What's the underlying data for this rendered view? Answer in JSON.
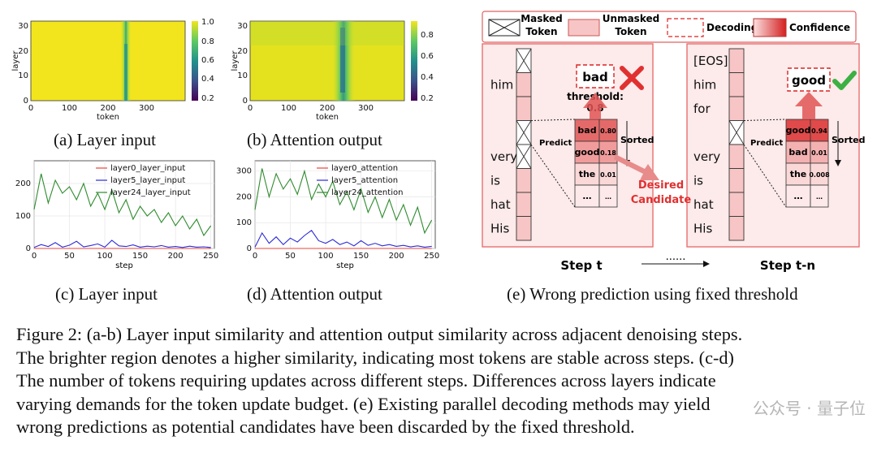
{
  "panels": {
    "a": {
      "caption": "(a) Layer input"
    },
    "b": {
      "caption": "(b) Attention output"
    },
    "c": {
      "caption": "(c) Layer input"
    },
    "d": {
      "caption": "(d) Attention output"
    },
    "e": {
      "caption": "(e) Wrong prediction using fixed threshold"
    }
  },
  "chart_data": [
    {
      "id": "a",
      "type": "heatmap",
      "title": "",
      "xlabel": "token",
      "ylabel": "layer",
      "xlim": [
        0,
        400
      ],
      "ylim": [
        0,
        32
      ],
      "x_ticks": [
        "0",
        "100",
        "200",
        "300"
      ],
      "y_ticks": [
        "0",
        "10",
        "20",
        "30"
      ],
      "colorbar_ticks": [
        "0.2",
        "0.4",
        "0.6",
        "0.8",
        "1.0"
      ],
      "colorbar_range": [
        0.15,
        1.0
      ],
      "colors": {
        "low": "#440154",
        "mid": "#21918c",
        "high": "#f2e51d"
      },
      "low_similarity_band": {
        "token_center": 252,
        "value_min": 0.6
      }
    },
    {
      "id": "b",
      "type": "heatmap",
      "title": "",
      "xlabel": "token",
      "ylabel": "layer",
      "xlim": [
        0,
        400
      ],
      "ylim": [
        0,
        32
      ],
      "x_ticks": [
        "0",
        "100",
        "200",
        "300"
      ],
      "y_ticks": [
        "0",
        "10",
        "20",
        "30"
      ],
      "colorbar_ticks": [
        "0.2",
        "0.4",
        "0.6",
        "0.8"
      ],
      "colorbar_range": [
        0.2,
        0.95
      ],
      "colors": {
        "low": "#440154",
        "mid": "#21918c",
        "high": "#f2e51d"
      },
      "low_similarity_band": {
        "token_center": 250,
        "value_min": 0.3
      }
    },
    {
      "id": "c",
      "type": "line",
      "xlabel": "step",
      "ylabel": "",
      "xlim": [
        0,
        255
      ],
      "ylim": [
        0,
        270
      ],
      "x_ticks": [
        0,
        50,
        100,
        150,
        200,
        250
      ],
      "y_ticks": [
        0,
        100,
        200
      ],
      "series": [
        {
          "name": "layer0_layer_input",
          "color": "#e8443a",
          "x": [
            0,
            50,
            100,
            150,
            200,
            250
          ],
          "values": [
            0,
            0,
            0,
            0,
            0,
            0
          ]
        },
        {
          "name": "layer5_layer_input",
          "color": "#2b2bd6",
          "x": [
            0,
            10,
            20,
            30,
            40,
            50,
            60,
            70,
            80,
            90,
            100,
            110,
            120,
            130,
            140,
            150,
            160,
            170,
            180,
            190,
            200,
            210,
            220,
            230,
            240,
            250
          ],
          "values": [
            3,
            12,
            6,
            18,
            4,
            10,
            22,
            5,
            9,
            14,
            4,
            25,
            8,
            6,
            11,
            4,
            7,
            5,
            9,
            4,
            6,
            3,
            7,
            4,
            5,
            3
          ]
        },
        {
          "name": "layer24_layer_input",
          "color": "#2e8b2e",
          "x": [
            0,
            10,
            20,
            30,
            40,
            50,
            60,
            70,
            80,
            90,
            100,
            110,
            120,
            130,
            140,
            150,
            160,
            170,
            180,
            190,
            200,
            210,
            220,
            230,
            240,
            250
          ],
          "values": [
            120,
            230,
            140,
            210,
            170,
            190,
            150,
            200,
            130,
            170,
            120,
            180,
            110,
            150,
            90,
            130,
            100,
            120,
            80,
            110,
            70,
            100,
            60,
            90,
            40,
            70
          ]
        }
      ]
    },
    {
      "id": "d",
      "type": "line",
      "xlabel": "step",
      "ylabel": "",
      "xlim": [
        0,
        255
      ],
      "ylim": [
        0,
        340
      ],
      "x_ticks": [
        0,
        50,
        100,
        150,
        200,
        250
      ],
      "y_ticks": [
        0,
        100,
        200,
        300
      ],
      "series": [
        {
          "name": "layer0_attention",
          "color": "#e8443a",
          "x": [
            0,
            50,
            100,
            150,
            200,
            250
          ],
          "values": [
            0,
            0,
            0,
            0,
            0,
            0
          ]
        },
        {
          "name": "layer5_attention",
          "color": "#2b2bd6",
          "x": [
            0,
            10,
            20,
            30,
            40,
            50,
            60,
            70,
            80,
            90,
            100,
            110,
            120,
            130,
            140,
            150,
            160,
            170,
            180,
            190,
            200,
            210,
            220,
            230,
            240,
            250
          ],
          "values": [
            5,
            60,
            20,
            45,
            15,
            40,
            25,
            50,
            70,
            30,
            20,
            35,
            15,
            25,
            10,
            30,
            12,
            20,
            10,
            15,
            8,
            12,
            6,
            10,
            5,
            8
          ]
        },
        {
          "name": "layer24_attention",
          "color": "#2e8b2e",
          "x": [
            0,
            10,
            20,
            30,
            40,
            50,
            60,
            70,
            80,
            90,
            100,
            110,
            120,
            130,
            140,
            150,
            160,
            170,
            180,
            190,
            200,
            210,
            220,
            230,
            240,
            250
          ],
          "values": [
            150,
            310,
            200,
            290,
            230,
            270,
            210,
            300,
            190,
            250,
            200,
            260,
            170,
            220,
            150,
            230,
            140,
            200,
            120,
            190,
            110,
            170,
            90,
            160,
            60,
            110
          ]
        }
      ]
    }
  ],
  "diagram": {
    "legend": {
      "masked": "Masked\nToken",
      "unmasked": "Unmasked\nToken",
      "decoding": "Decoding",
      "confidence": "Confidence"
    },
    "left": {
      "words": [
        "him",
        "very",
        "is",
        "hat",
        "His"
      ],
      "predict_label": "Predict",
      "sorted_label": "Sorted",
      "decoded_token": "bad",
      "threshold_label": "threshold:",
      "threshold_value": "0.8",
      "table": [
        {
          "token": "bad",
          "score": "0.80"
        },
        {
          "token": "good",
          "score": "0.18"
        },
        {
          "token": "the",
          "score": "0.01"
        },
        {
          "token": "…",
          "score": "…"
        }
      ],
      "desired_label_1": "Desired",
      "desired_label_2": "Candidate",
      "step_label": "Step t"
    },
    "right": {
      "words": [
        "[EOS]",
        "him",
        "for",
        "very",
        "is",
        "hat",
        "His"
      ],
      "predict_label": "Predict",
      "sorted_label": "Sorted",
      "decoded_token": "good",
      "table": [
        {
          "token": "good",
          "score": "0.94"
        },
        {
          "token": "bad",
          "score": "0.01"
        },
        {
          "token": "the",
          "score": "0.008"
        },
        {
          "token": "…",
          "score": "…"
        }
      ],
      "step_label": "Step t-n"
    },
    "ellipsis": "......",
    "colors": {
      "red": "#e03030",
      "pink": "#f7c5c5",
      "frame": "#e87070",
      "green": "#3cb043",
      "fill": "#fdeaea"
    }
  },
  "figure_caption": [
    "Figure 2: (a-b) Layer input similarity and attention output similarity across adjacent denoising steps.",
    "The brighter region denotes a higher similarity, indicating most tokens are stable across steps. (c-d)",
    "The number of tokens requiring updates across different steps. Differences across layers indicate",
    "varying demands for the token update budget. (e) Existing parallel decoding methods may yield",
    "wrong predictions as potential candidates have been discarded by the fixed threshold."
  ],
  "watermark": "公众号 · 量子位"
}
